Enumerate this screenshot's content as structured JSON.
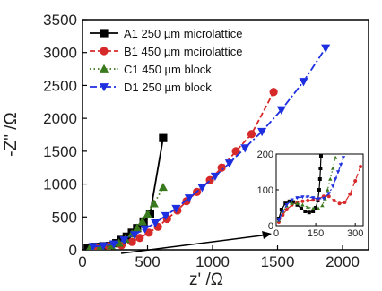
{
  "chart_data": {
    "type": "scatter",
    "xlabel": "z' /Ω",
    "ylabel": "-Z\" /Ω",
    "xlim": [
      0,
      2200
    ],
    "ylim": [
      0,
      3500
    ],
    "xticks": [
      0,
      500,
      1000,
      1500,
      2000
    ],
    "yticks": [
      0,
      500,
      1000,
      1500,
      2000,
      2500,
      3000,
      3500
    ],
    "legend_position": "top-left",
    "series": [
      {
        "name": "A1 250 µm microlattice",
        "color": "#000000",
        "marker": "square",
        "line": "solid",
        "x": [
          40,
          100,
          160,
          210,
          260,
          300,
          340,
          380,
          420,
          470,
          520,
          620
        ],
        "y": [
          30,
          45,
          55,
          60,
          100,
          150,
          200,
          260,
          330,
          430,
          550,
          1700
        ]
      },
      {
        "name": "B1 450 µm mcirolattice",
        "color": "#d62a2a",
        "marker": "circle",
        "line": "dashed",
        "x": [
          100,
          200,
          300,
          380,
          440,
          510,
          580,
          650,
          730,
          800,
          880,
          980,
          1070,
          1180,
          1300,
          1470
        ],
        "y": [
          40,
          55,
          70,
          120,
          180,
          260,
          350,
          470,
          600,
          740,
          880,
          1060,
          1250,
          1500,
          1760,
          2400
        ]
      },
      {
        "name": "C1 450 µm block",
        "color": "#3a7a1e",
        "marker": "triangle-up",
        "line": "dotted",
        "x": [
          60,
          140,
          220,
          280,
          330,
          380,
          420,
          460,
          500,
          550,
          620
        ],
        "y": [
          40,
          55,
          60,
          100,
          160,
          240,
          330,
          430,
          540,
          700,
          950
        ]
      },
      {
        "name": "D1 250 µm block",
        "color": "#1e2fe0",
        "marker": "triangle-down",
        "line": "dashdot",
        "x": [
          80,
          160,
          240,
          320,
          400,
          480,
          560,
          640,
          720,
          820,
          920,
          1020,
          1130,
          1250,
          1380,
          1530,
          1700,
          1870
        ],
        "y": [
          50,
          60,
          90,
          150,
          230,
          320,
          410,
          520,
          630,
          790,
          950,
          1120,
          1320,
          1550,
          1800,
          2130,
          2560,
          3070
        ]
      }
    ],
    "inset": {
      "xlim": [
        0,
        330
      ],
      "ylim": [
        0,
        200
      ],
      "xticks": [
        0,
        150,
        300
      ],
      "yticks": [
        0,
        100,
        200
      ],
      "series": [
        {
          "name": "A1 250 µm microlattice",
          "x": [
            10,
            20,
            35,
            50,
            65,
            80,
            95,
            110,
            125,
            140,
            150,
            158,
            163,
            166,
            168,
            170
          ],
          "y": [
            20,
            45,
            62,
            68,
            66,
            58,
            48,
            40,
            37,
            40,
            50,
            70,
            100,
            130,
            160,
            195
          ]
        },
        {
          "name": "B1 450 µm mcirolattice",
          "x": [
            10,
            25,
            40,
            60,
            80,
            100,
            120,
            140,
            160,
            180,
            200,
            220,
            240,
            260,
            280,
            300,
            320
          ],
          "y": [
            10,
            30,
            45,
            58,
            65,
            68,
            70,
            72,
            75,
            82,
            82,
            70,
            62,
            65,
            88,
            125,
            165
          ]
        },
        {
          "name": "C1 450 µm block",
          "x": [
            10,
            25,
            40,
            60,
            80,
            100,
            120,
            140,
            160,
            175,
            185,
            195,
            205,
            215,
            225
          ],
          "y": [
            15,
            40,
            55,
            62,
            62,
            58,
            52,
            48,
            48,
            56,
            75,
            100,
            130,
            160,
            190
          ]
        },
        {
          "name": "D1 250 µm block",
          "x": [
            10,
            25,
            40,
            60,
            80,
            100,
            120,
            140,
            160,
            180,
            200,
            215,
            225,
            235,
            245,
            255
          ],
          "y": [
            15,
            40,
            58,
            72,
            78,
            80,
            80,
            78,
            75,
            76,
            90,
            110,
            130,
            150,
            170,
            190
          ]
        }
      ]
    }
  }
}
